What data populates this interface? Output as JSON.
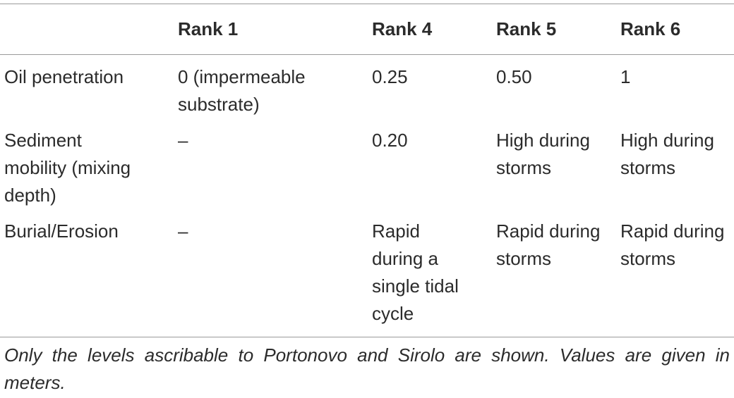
{
  "table": {
    "header": [
      "Rank 1",
      "Rank 4",
      "Rank 5",
      "Rank 6"
    ],
    "rows": [
      [
        "Oil penetration",
        "0 (impermeable substrate)",
        "0.25",
        "0.50",
        "1"
      ],
      [
        "Sediment mobility (mixing depth)",
        "–",
        "0.20",
        "High during storms",
        "High during storms"
      ],
      [
        "Burial/Erosion",
        "–",
        "Rapid during a single tidal cycle",
        "Rapid during storms",
        "Rapid during storms"
      ]
    ],
    "footnote": "Only the levels ascribable to Portonovo and Sirolo are shown. Values are given in meters."
  }
}
